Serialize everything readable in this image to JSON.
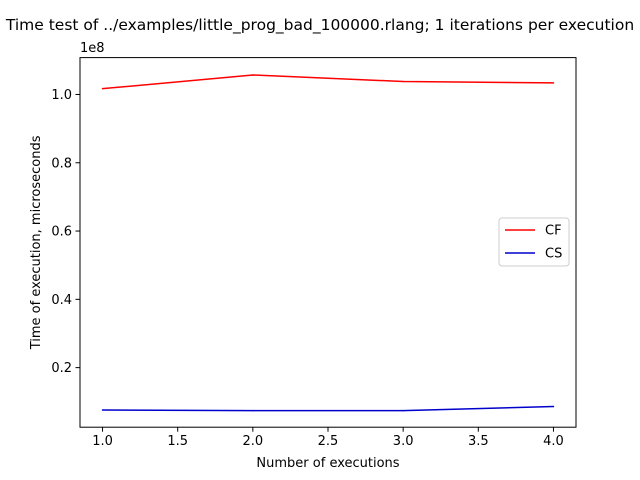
{
  "chart_data": {
    "type": "line",
    "title": "Time test of ../examples/little_prog_bad_100000.rlang; 1 iterations per execution",
    "xlabel": "Number of executions",
    "ylabel": "Time of execution, microseconds",
    "y_offset_label": "1e8",
    "y_multiplier": 100000000,
    "xlim": [
      0.85,
      4.15
    ],
    "ylim": [
      0.0255,
      1.108
    ],
    "x_ticks": [
      1.0,
      1.5,
      2.0,
      2.5,
      3.0,
      3.5,
      4.0
    ],
    "x_tick_labels": [
      "1.0",
      "1.5",
      "2.0",
      "2.5",
      "3.0",
      "3.5",
      "4.0"
    ],
    "y_ticks": [
      0.2,
      0.4,
      0.6,
      0.8,
      1.0
    ],
    "y_tick_labels": [
      "0.2",
      "0.4",
      "0.6",
      "0.8",
      "1.0"
    ],
    "grid": false,
    "legend_position": "center-right",
    "x": [
      1,
      2,
      3,
      4
    ],
    "series": [
      {
        "name": "CF",
        "color": "#ff0000",
        "values": [
          1.017,
          1.057,
          1.038,
          1.034
        ]
      },
      {
        "name": "CS",
        "color": "#0000cc",
        "values": [
          0.076,
          0.074,
          0.074,
          0.086
        ]
      }
    ]
  }
}
